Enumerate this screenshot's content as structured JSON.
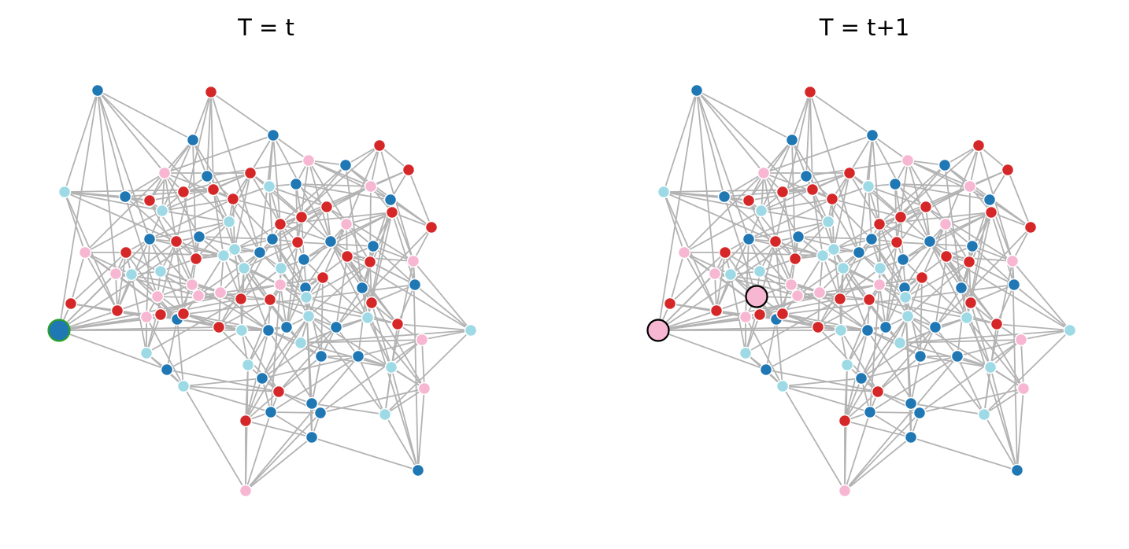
{
  "panels": [
    {
      "title": "T = t"
    },
    {
      "title": "T = t+1"
    }
  ]
}
